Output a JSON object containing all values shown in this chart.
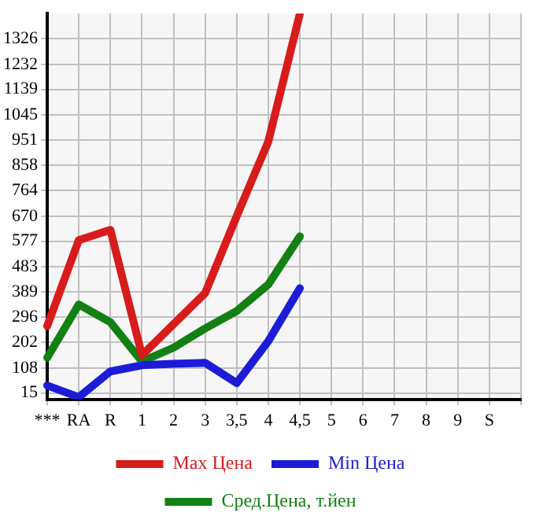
{
  "chart_data": {
    "type": "line",
    "categories": [
      "***",
      "RA",
      "R",
      "1",
      "2",
      "3",
      "3,5",
      "4",
      "4,5",
      "5",
      "6",
      "7",
      "8",
      "9",
      "S",
      null
    ],
    "series": [
      {
        "name": "Max Цена",
        "color": "#d81c1c",
        "values": [
          263,
          581,
          619,
          155,
          270,
          385,
          670,
          946,
          1420,
          null,
          null,
          null,
          null,
          null,
          null,
          null
        ]
      },
      {
        "name": "Min Цена",
        "color": "#1c1cd8",
        "values": [
          43,
          0,
          95,
          118,
          123,
          127,
          52,
          207,
          403,
          null,
          null,
          null,
          null,
          null,
          null,
          null
        ]
      },
      {
        "name": "Сред.Цена, т.йен",
        "color": "#138013",
        "values": [
          146,
          343,
          277,
          132,
          183,
          254,
          319,
          417,
          595,
          null,
          null,
          null,
          null,
          null,
          null,
          null
        ]
      }
    ],
    "ylim": [
      -8,
      1420
    ],
    "yticks": [
      15,
      108,
      202,
      296,
      389,
      483,
      577,
      670,
      764,
      858,
      951,
      1045,
      1139,
      1232,
      1326
    ],
    "grid": true,
    "legend": "bottom",
    "marker": "none",
    "line_style": "solid"
  }
}
